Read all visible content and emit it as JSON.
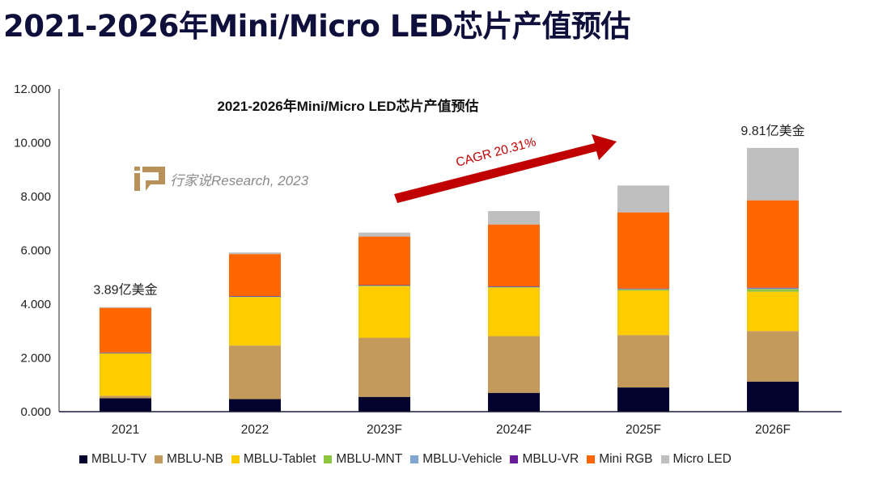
{
  "page_title": "2021-2026年Mini/Micro LED芯片产值预估",
  "watermark": {
    "text": "行家说Research, 2023",
    "color": "#b8925a"
  },
  "chart_data": {
    "type": "bar",
    "stacked": true,
    "title": "2021-2026年Mini/Micro LED芯片产值预估",
    "xlabel": "",
    "ylabel": "",
    "ylim": [
      0,
      12
    ],
    "yticks": [
      "0.000",
      "2.000",
      "4.000",
      "6.000",
      "8.000",
      "10.000",
      "12.000"
    ],
    "ytick_values": [
      0,
      2,
      4,
      6,
      8,
      10,
      12
    ],
    "grid": false,
    "legend_position": "bottom",
    "categories": [
      "2021",
      "2022",
      "2023F",
      "2024F",
      "2025F",
      "2026F"
    ],
    "series": [
      {
        "name": "MBLU-TV",
        "color": "#03032e",
        "values": [
          0.5,
          0.47,
          0.55,
          0.7,
          0.9,
          1.12
        ]
      },
      {
        "name": "MBLU-NB",
        "color": "#c49a5c",
        "values": [
          0.09,
          1.99,
          2.2,
          2.11,
          1.95,
          1.88
        ]
      },
      {
        "name": "MBLU-Tablet",
        "color": "#ffcc00",
        "values": [
          1.58,
          1.8,
          1.91,
          1.8,
          1.65,
          1.46
        ]
      },
      {
        "name": "MBLU-MNT",
        "color": "#8dc63f",
        "values": [
          0.01,
          0.02,
          0.03,
          0.03,
          0.05,
          0.1
        ]
      },
      {
        "name": "MBLU-Vehicle",
        "color": "#7fa7d6",
        "values": [
          0.01,
          0.01,
          0.01,
          0.01,
          0.02,
          0.03
        ]
      },
      {
        "name": "MBLU-VR",
        "color": "#6a1b9a",
        "values": [
          0.01,
          0.01,
          0.01,
          0.01,
          0.01,
          0.02
        ]
      },
      {
        "name": "Mini RGB",
        "color": "#ff6600",
        "values": [
          1.66,
          1.56,
          1.8,
          2.3,
          2.83,
          3.25
        ]
      },
      {
        "name": "Micro LED",
        "color": "#bfbfbf",
        "values": [
          0.03,
          0.06,
          0.15,
          0.5,
          1.0,
          1.95
        ]
      }
    ],
    "annotations": [
      {
        "text": "3.89亿美金",
        "category": "2021"
      },
      {
        "text": "9.81亿美金",
        "category": "2026F"
      },
      {
        "text": "CAGR 20.31%",
        "color": "#c00000"
      }
    ]
  }
}
